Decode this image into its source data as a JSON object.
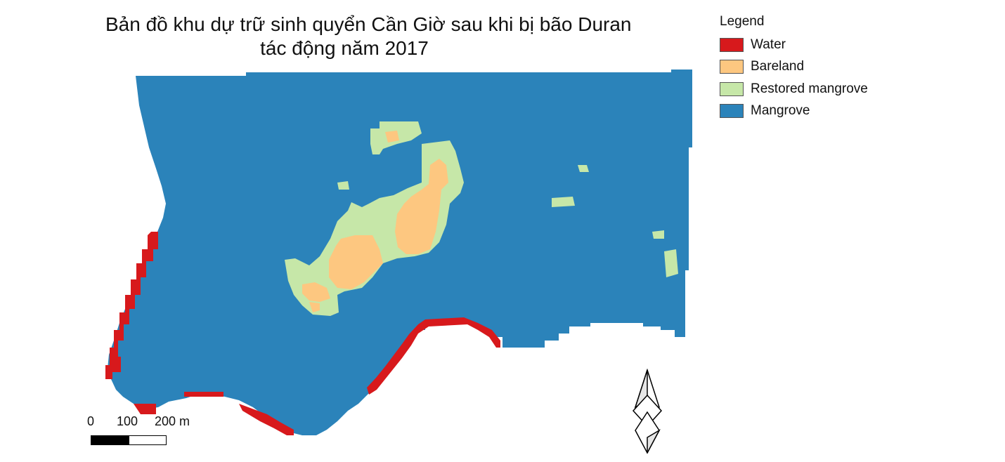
{
  "map": {
    "title_line1": "Bản đồ khu dự trữ sinh quyển Cần Giờ sau khi bị bão Duran",
    "title_line2": "tác động năm 2017"
  },
  "legend": {
    "title": "Legend",
    "items": [
      {
        "label": "Water",
        "color": "#d7191c",
        "icon": "water-swatch"
      },
      {
        "label": "Bareland",
        "color": "#fdc780",
        "icon": "bareland-swatch"
      },
      {
        "label": "Restored mangrove",
        "color": "#c6e7a8",
        "icon": "restored-mangrove-swatch"
      },
      {
        "label": "Mangrove",
        "color": "#2b83ba",
        "icon": "mangrove-swatch"
      }
    ]
  },
  "scale_bar": {
    "label_0": "0",
    "label_100": "100",
    "label_200": "200 m"
  },
  "north_arrow": {
    "icon": "north-arrow-icon"
  }
}
